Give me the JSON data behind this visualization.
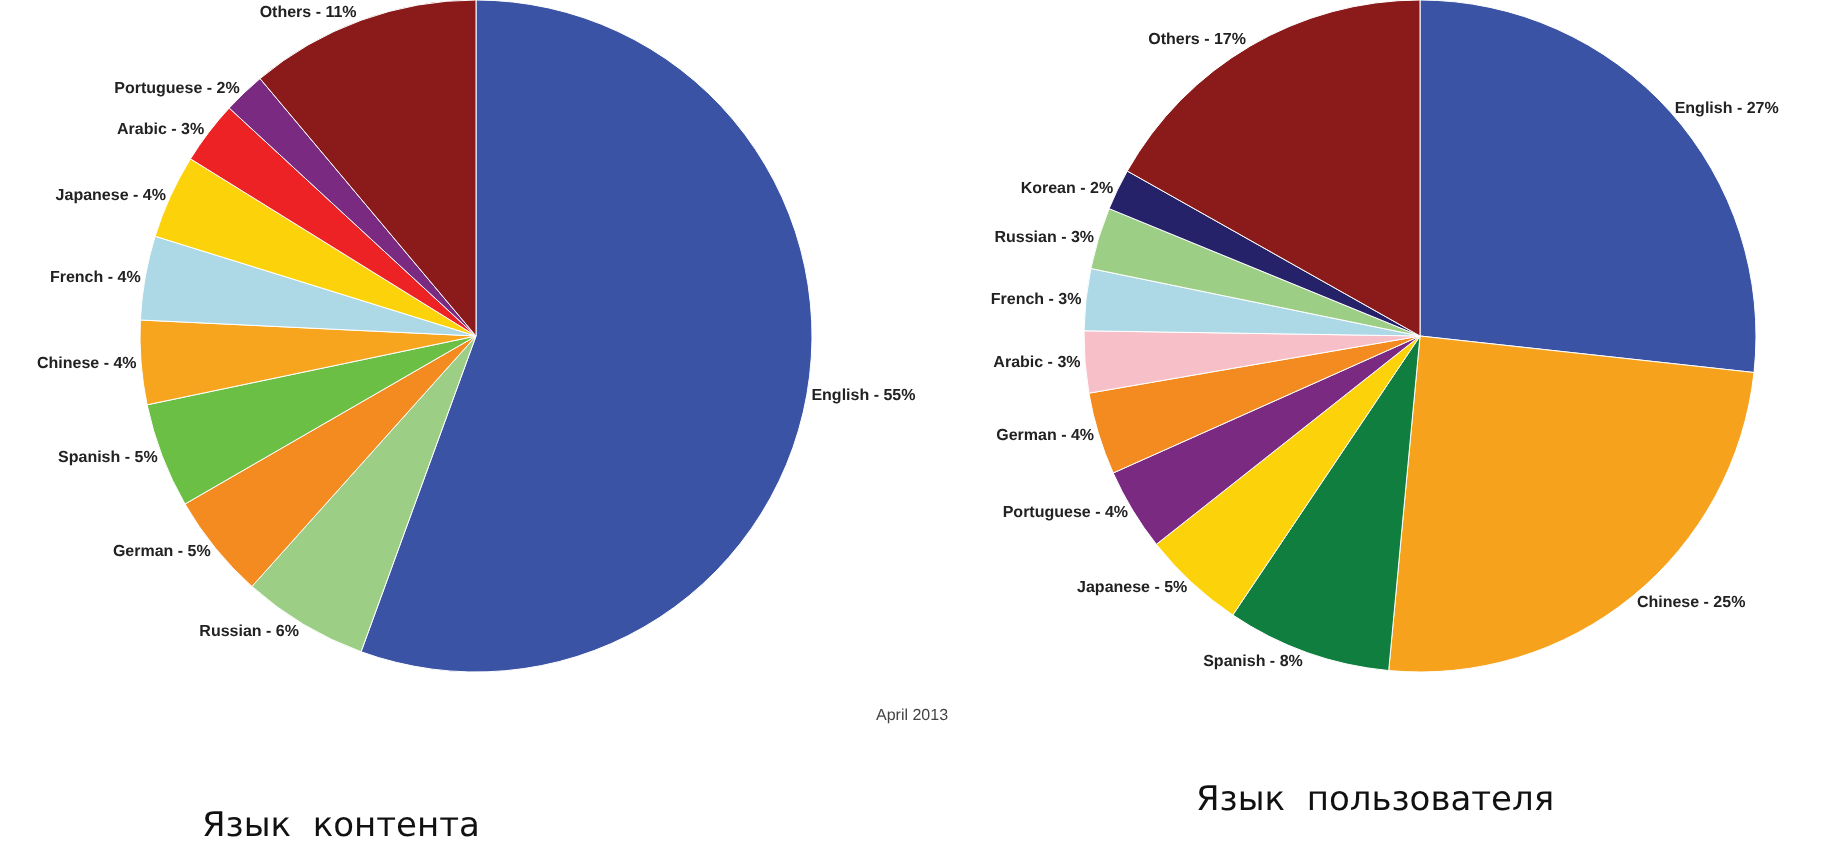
{
  "chart_data": [
    {
      "type": "pie",
      "title": "Язык  контента",
      "categories": [
        "English",
        "Russian",
        "German",
        "Spanish",
        "Chinese",
        "French",
        "Japanese",
        "Arabic",
        "Portuguese",
        "Others"
      ],
      "values": [
        55,
        6,
        5,
        5,
        4,
        4,
        4,
        3,
        2,
        11
      ],
      "value_labels": [
        "55%",
        "6%",
        "5%",
        "5%",
        "4%",
        "4%",
        "4%",
        "3%",
        "2%",
        "11%"
      ],
      "colors": [
        "#3a53a4",
        "#9ccf85",
        "#f38b20",
        "#6cbf45",
        "#f7a51e",
        "#add8e6",
        "#fcd20b",
        "#ed2224",
        "#7b2a82",
        "#8b1a1a"
      ],
      "annotations": [
        "April 2013"
      ]
    },
    {
      "type": "pie",
      "title": "Язык  пользователя",
      "categories": [
        "English",
        "Chinese",
        "Spanish",
        "Japanese",
        "Portuguese",
        "German",
        "Arabic",
        "French",
        "Russian",
        "Korean",
        "Others"
      ],
      "values": [
        27,
        25,
        8,
        5,
        4,
        4,
        3,
        3,
        3,
        2,
        17
      ],
      "value_labels": [
        "27%",
        "25%",
        "8%",
        "5%",
        "4%",
        "4%",
        "3%",
        "3%",
        "3%",
        "2%",
        "17%"
      ],
      "colors": [
        "#3a53a4",
        "#f7a21d",
        "#0f7e3e",
        "#fcd20b",
        "#7b2a82",
        "#f38b20",
        "#f7bfc8",
        "#add8e6",
        "#9ccf85",
        "#26226a",
        "#8b1a1a"
      ]
    }
  ]
}
